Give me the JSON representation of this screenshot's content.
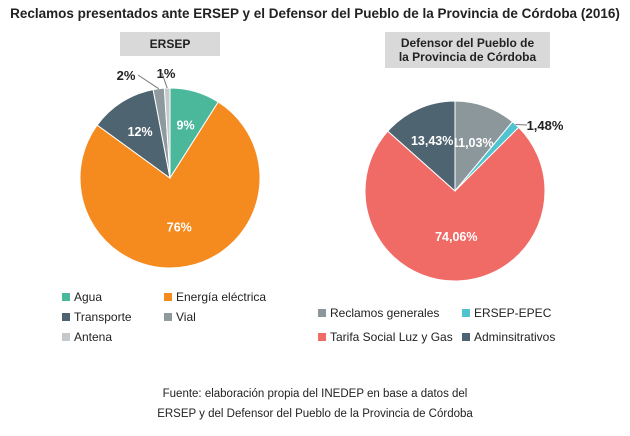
{
  "title": "Reclamos presentados ante ERSEP y el Defensor del Pueblo de la Provincia de Córdoba (2016)",
  "source": [
    "Fuente: elaboración propia del INEDEP en base a datos del",
    "ERSEP y del Defensor del Pueblo de la Provincia de Córdoba"
  ],
  "chart_data": [
    {
      "type": "pie",
      "title": "ERSEP",
      "categories": [
        "Agua",
        "Energía eléctrica",
        "Transporte",
        "Vial",
        "Antena"
      ],
      "values": [
        9,
        76,
        12,
        2,
        1
      ],
      "labels": [
        "9%",
        "76%",
        "12%",
        "2%",
        "1%"
      ],
      "colors": [
        "#4bb89c",
        "#f58a1f",
        "#4e6470",
        "#8f9a9f",
        "#c3c9cc"
      ],
      "legend": "bottom"
    },
    {
      "type": "pie",
      "title": "Defensor del Pueblo de la Provincia de Córdoba",
      "title_lines": [
        "Defensor del Pueblo de",
        "la Provincia de Córdoba"
      ],
      "categories": [
        "Reclamos generales",
        "ERSEP-EPEC",
        "Tarifa Social Luz y Gas",
        "Adminsitrativos"
      ],
      "values": [
        11.03,
        1.48,
        74.06,
        13.43
      ],
      "labels": [
        "11,03%",
        "1,48%",
        "74,06%",
        "13,43%"
      ],
      "colors": [
        "#8c979b",
        "#4fc3d0",
        "#f06b66",
        "#4e6470"
      ],
      "legend": "bottom"
    }
  ]
}
